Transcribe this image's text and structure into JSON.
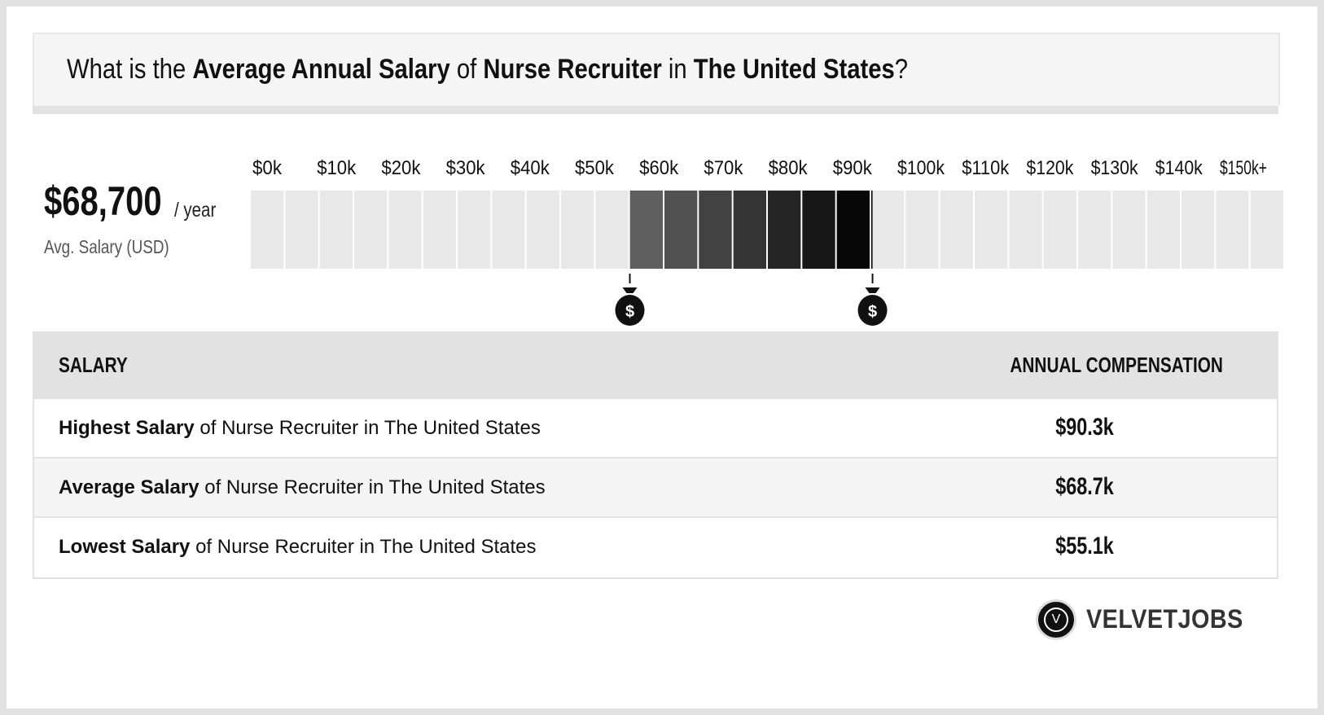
{
  "header": {
    "t1": "What is the ",
    "b1": "Average Annual Salary",
    "t2": " of ",
    "b2": "Nurse Recruiter",
    "t3": " in ",
    "b3": "The United States",
    "t4": "?"
  },
  "summary": {
    "value": "$68,700",
    "unit": "/ year",
    "label": "Avg. Salary (USD)"
  },
  "chart_data": {
    "type": "bar",
    "title": "",
    "xlabel": "",
    "ylabel": "",
    "tick_labels": [
      "$0k",
      "$10k",
      "$20k",
      "$30k",
      "$40k",
      "$50k",
      "$60k",
      "$70k",
      "$80k",
      "$90k",
      "$100k",
      "$110k",
      "$120k",
      "$130k",
      "$140k",
      "$150k+"
    ],
    "xlim": [
      0,
      150
    ],
    "units": "thousand USD",
    "range_low": 55.1,
    "range_high": 90.3,
    "average": 68.7,
    "markers": [
      55.1,
      90.3
    ],
    "colors": {
      "empty": "#e8e8e8",
      "range_start": "#666666",
      "range_end": "#000000"
    }
  },
  "table": {
    "col_left": "SALARY",
    "col_right": "ANNUAL COMPENSATION",
    "rows": [
      {
        "bold": "Highest Salary",
        "rest": " of Nurse Recruiter in The United States",
        "value": "$90.3k"
      },
      {
        "bold": "Average Salary",
        "rest": " of Nurse Recruiter in The United States",
        "value": "$68.7k"
      },
      {
        "bold": "Lowest Salary",
        "rest": " of Nurse Recruiter in The United States",
        "value": "$55.1k"
      }
    ]
  },
  "logo": {
    "letter": "V",
    "text": "VELVETJOBS"
  }
}
